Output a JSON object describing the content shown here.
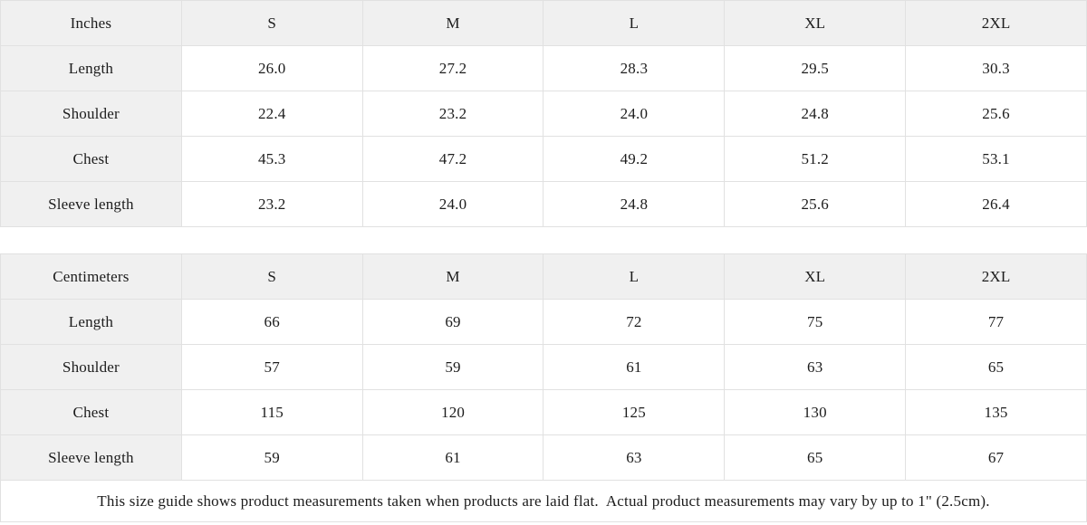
{
  "colors": {
    "header_bg": "#f0f0f0",
    "border": "#e1e1e1",
    "text": "#1c1c1c",
    "background": "#ffffff"
  },
  "chart_data": [
    {
      "type": "table",
      "title": "Inches",
      "columns": [
        "Inches",
        "S",
        "M",
        "L",
        "XL",
        "2XL"
      ],
      "rows": [
        [
          "Length",
          "26.0",
          "27.2",
          "28.3",
          "29.5",
          "30.3"
        ],
        [
          "Shoulder",
          "22.4",
          "23.2",
          "24.0",
          "24.8",
          "25.6"
        ],
        [
          "Chest",
          "45.3",
          "47.2",
          "49.2",
          "51.2",
          "53.1"
        ],
        [
          "Sleeve length",
          "23.2",
          "24.0",
          "24.8",
          "25.6",
          "26.4"
        ]
      ]
    },
    {
      "type": "table",
      "title": "Centimeters",
      "columns": [
        "Centimeters",
        "S",
        "M",
        "L",
        "XL",
        "2XL"
      ],
      "rows": [
        [
          "Length",
          "66",
          "69",
          "72",
          "75",
          "77"
        ],
        [
          "Shoulder",
          "57",
          "59",
          "61",
          "63",
          "65"
        ],
        [
          "Chest",
          "115",
          "120",
          "125",
          "130",
          "135"
        ],
        [
          "Sleeve length",
          "59",
          "61",
          "63",
          "65",
          "67"
        ]
      ]
    }
  ],
  "footer_note": "This size guide shows product measurements taken when products are laid flat.  Actual product measurements may vary by up to 1\" (2.5cm)."
}
